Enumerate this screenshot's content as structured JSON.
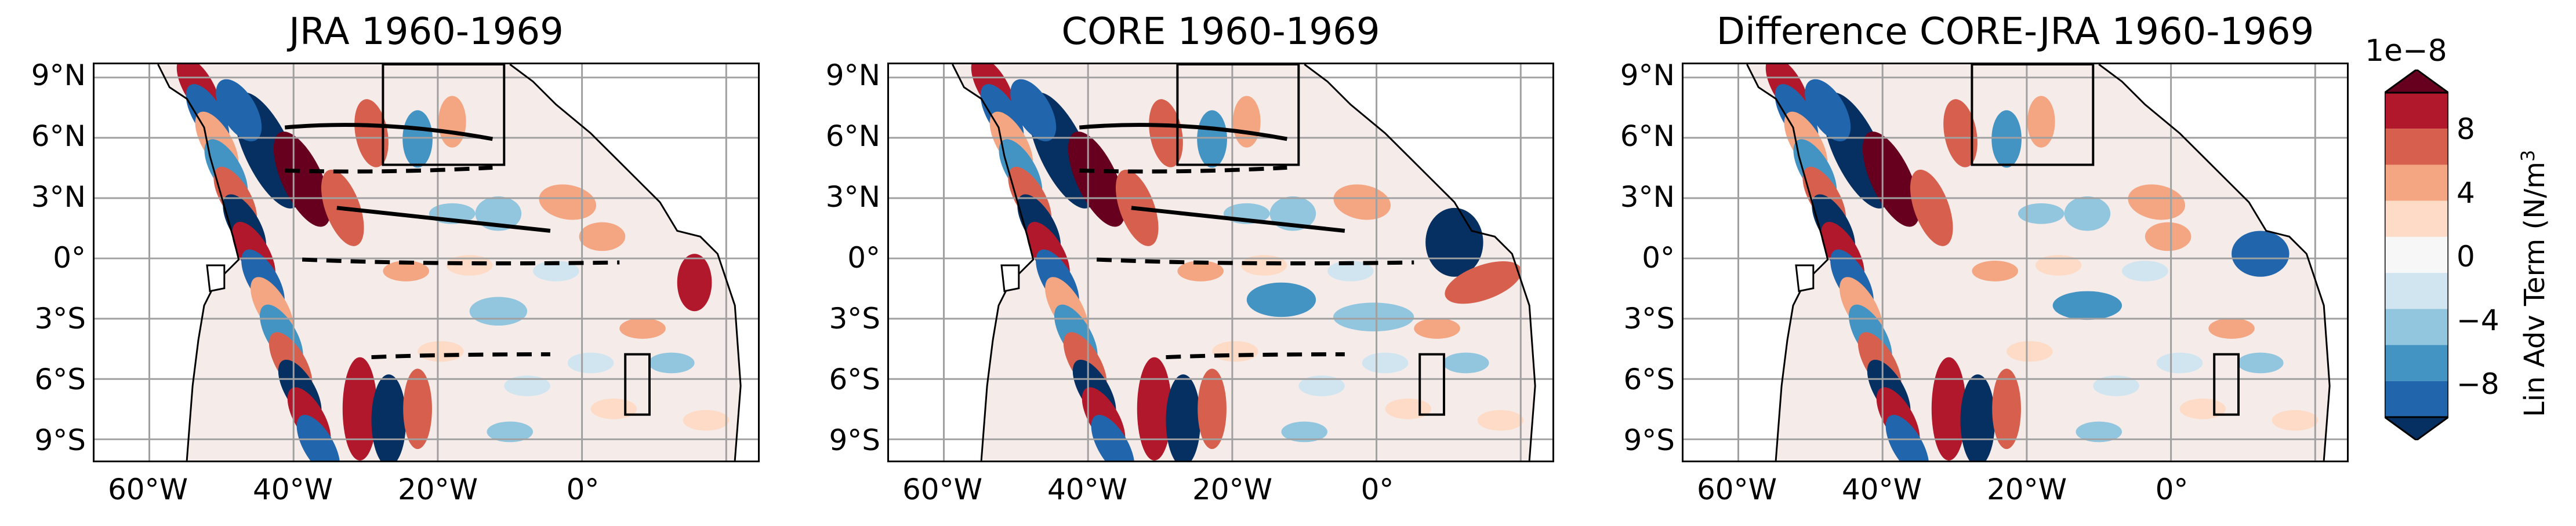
{
  "panels": [
    {
      "title": "JRA 1960-1969",
      "variant": "jra"
    },
    {
      "title": "CORE 1960-1969",
      "variant": "core"
    },
    {
      "title": "Difference CORE-JRA 1960-1969",
      "variant": "diff"
    }
  ],
  "y_ticks": [
    "9°N",
    "6°N",
    "3°N",
    "0°",
    "3°S",
    "6°S",
    "9°S"
  ],
  "x_ticks": [
    "60°W",
    "40°W",
    "20°W",
    "0°"
  ],
  "colorbar": {
    "exponent": "1e−8",
    "label": "Lin Adv Term (N/m",
    "tick_labels": [
      "8",
      "4",
      "0",
      "−4",
      "−8"
    ],
    "levels": [
      "#67001f",
      "#b2182b",
      "#d6604d",
      "#f4a582",
      "#fddbc7",
      "#f7f7f7",
      "#d1e5f0",
      "#92c5de",
      "#4393c3",
      "#2166ac",
      "#053061"
    ]
  }
}
